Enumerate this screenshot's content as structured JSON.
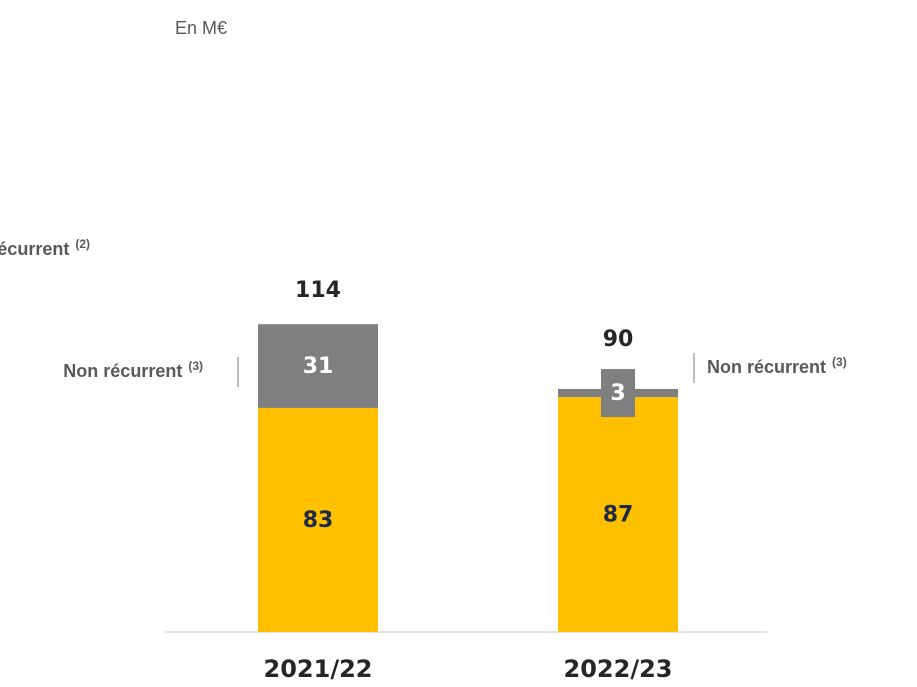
{
  "chart_data": {
    "type": "stacked-bar",
    "subtitle": "En M€",
    "categories": [
      "2021/22",
      "2022/23"
    ],
    "series": [
      {
        "name": "Récurrent",
        "note": "(2)",
        "color": "#FFC000",
        "values": [
          83,
          87
        ]
      },
      {
        "name": "Non récurrent",
        "note": "(3)",
        "color": "#7F7F7F",
        "values": [
          31,
          3
        ]
      }
    ],
    "totals": [
      114,
      90
    ],
    "ylim": [
      0,
      120
    ]
  }
}
